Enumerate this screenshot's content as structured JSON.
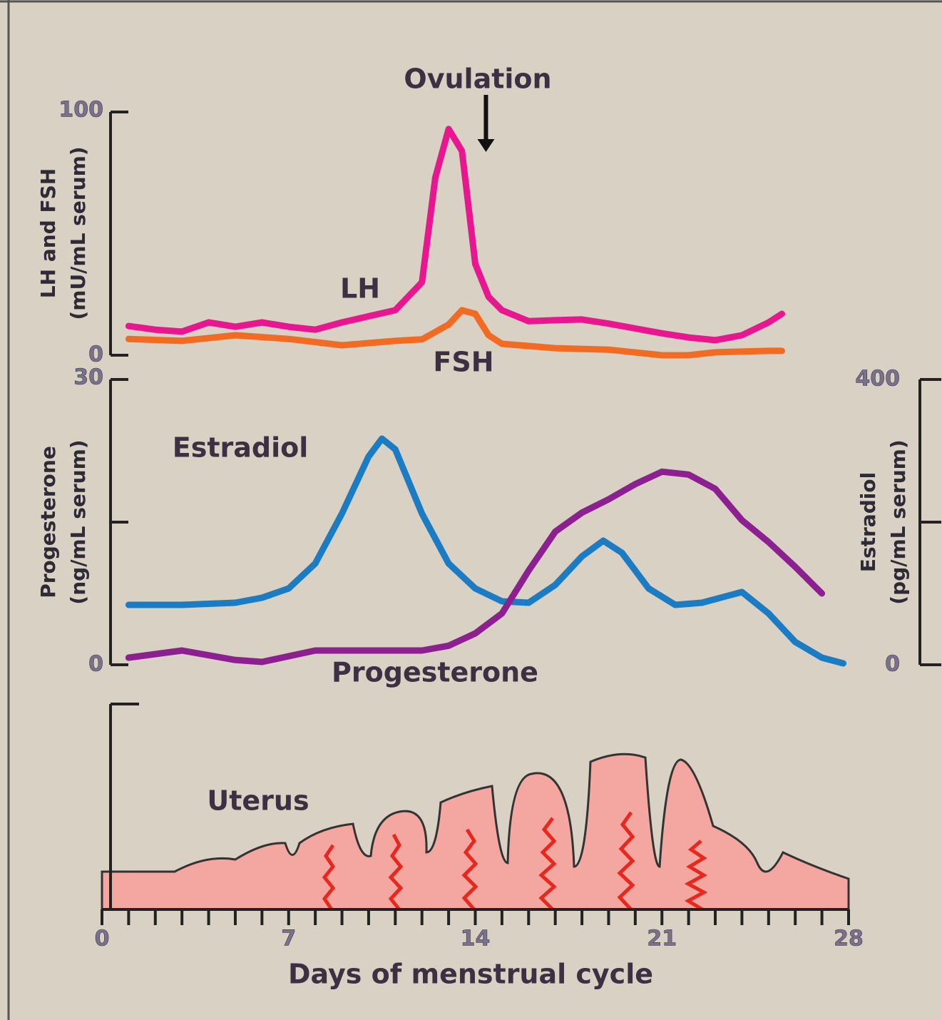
{
  "chart_data": [
    {
      "type": "line",
      "ylabel": [
        "LH and FSH",
        "(mU/mL serum)"
      ],
      "annotation": {
        "text": "Ovulation",
        "x": 14.4
      },
      "xlim": [
        0,
        28
      ],
      "ylim": [
        0,
        100
      ],
      "yticks": [
        0,
        100
      ],
      "series": [
        {
          "name": "LH",
          "color": "#e8168f",
          "x": [
            1,
            2,
            3,
            4,
            5,
            6,
            7,
            8,
            9,
            10,
            11,
            12,
            12.5,
            13,
            13.5,
            14,
            14.5,
            15,
            16,
            17,
            18,
            19,
            20,
            21,
            22,
            23,
            24,
            25,
            25.5
          ],
          "values": [
            12,
            10.5,
            9.7,
            13.5,
            11.7,
            13.5,
            11.7,
            10.5,
            13.5,
            16,
            18.5,
            30,
            73,
            93,
            84,
            37.5,
            24,
            18.5,
            14,
            14.4,
            14.7,
            13,
            11,
            9,
            7.3,
            6.2,
            8.2,
            13.5,
            17
          ]
        },
        {
          "name": "FSH",
          "color": "#f26b22",
          "x": [
            1,
            3,
            5,
            7,
            9,
            11,
            12,
            13,
            13.5,
            14,
            14.5,
            15,
            17,
            19,
            21,
            22,
            23,
            25,
            25.5
          ],
          "values": [
            6.7,
            5.9,
            8.2,
            6.7,
            4.1,
            5.9,
            6.5,
            12.6,
            18.5,
            17,
            8.2,
            4.7,
            2.9,
            2.3,
            0,
            0,
            1.2,
            1.8,
            1.8
          ]
        }
      ]
    },
    {
      "type": "line",
      "ylabel": [
        "Progesterone",
        "(ng/mL serum)"
      ],
      "y2label": [
        "Estradiol",
        "(pg/mL serum)"
      ],
      "xlim": [
        0,
        28
      ],
      "ylim": [
        0,
        30
      ],
      "yticks": [
        0,
        30
      ],
      "minor_yticks": [
        15
      ],
      "y2lim": [
        0,
        400
      ],
      "y2ticks": [
        0,
        400
      ],
      "minor_y2ticks": [
        200
      ],
      "series": [
        {
          "name": "Estradiol",
          "color": "#1b7cc4",
          "axis": "y2",
          "x": [
            1,
            3,
            5,
            6,
            7,
            8,
            9,
            10,
            10.5,
            11,
            12,
            13,
            14,
            15,
            16,
            17,
            18,
            18.8,
            19.5,
            20.5,
            21.5,
            22.5,
            24,
            25,
            26,
            27,
            27.8
          ],
          "values": [
            84,
            84,
            87,
            94,
            107,
            142,
            212,
            292,
            317,
            302,
            212,
            142,
            107,
            89,
            87,
            112,
            152,
            174,
            157,
            107,
            84,
            87,
            102,
            72,
            32,
            10,
            2
          ]
        },
        {
          "name": "Progesterone",
          "color": "#8c2090",
          "x": [
            1,
            3,
            5,
            6,
            8,
            10,
            12,
            13,
            14,
            15,
            16,
            17,
            18,
            19,
            20,
            21,
            22,
            23,
            24,
            25,
            26,
            27
          ],
          "values": [
            0.75,
            1.5,
            0.5,
            0.3,
            1.5,
            1.5,
            1.5,
            2,
            3.3,
            5.4,
            9.9,
            14,
            16,
            17.4,
            19,
            20.3,
            20,
            18.5,
            15.2,
            12.9,
            10.3,
            7.5
          ]
        }
      ]
    },
    {
      "type": "diagram",
      "label": "Uterus",
      "xlabel": "Days of menstrual cycle",
      "xlim": [
        0,
        28
      ],
      "xticks": [
        0,
        7,
        14,
        21,
        28
      ],
      "minor_xticks": [
        1,
        2,
        3,
        4,
        5,
        6,
        8,
        9,
        10,
        11,
        12,
        13,
        15,
        16,
        17,
        18,
        19,
        20,
        22,
        23,
        24,
        25,
        26,
        27
      ]
    }
  ]
}
